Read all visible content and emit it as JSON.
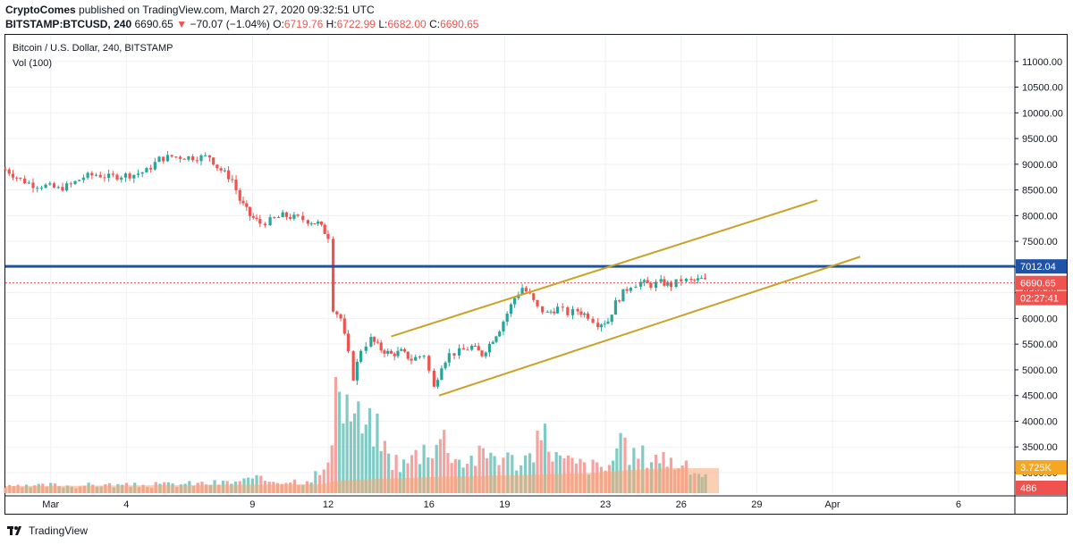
{
  "header": {
    "line1_author": "CryptoComes",
    "line1_rest": "published on TradingView.com, March 27, 2020 09:32:51 UTC",
    "symbol": "BITSTAMP:BTCUSD, 240",
    "last": "6690.65",
    "arrow": "▼",
    "change": "−70.07 (−1.04%)",
    "o_label": "O:",
    "o_val": "6719.76",
    "h_label": "H:",
    "h_val": "6722.99",
    "l_label": "L:",
    "l_val": "6682.00",
    "c_label": "C:",
    "c_val": "6690.65"
  },
  "legend": {
    "title": "Bitcoin / U.S. Dollar, 240, BITSTAMP",
    "volume": "Vol (100)"
  },
  "footer": {
    "brand": "TradingView"
  },
  "chart_data": {
    "type": "candlestick",
    "symbol": "BTCUSD",
    "exchange": "BITSTAMP",
    "interval_minutes": 240,
    "y_ticks": [
      3000,
      3500,
      4000,
      4500,
      5000,
      5500,
      6000,
      6500,
      7000,
      7500,
      8000,
      8500,
      9000,
      9500,
      10000,
      10500,
      11000
    ],
    "y_tick_labels": [
      "3000.00",
      "3500.00",
      "4000.00",
      "4500.00",
      "5000.00",
      "5500.00",
      "6000.00",
      "6500.00",
      "7000.00",
      "7500.00",
      "8000.00",
      "8500.00",
      "9000.00",
      "9500.00",
      "10000.00",
      "10500.00",
      "11000.00"
    ],
    "ylim": [
      2600,
      11500
    ],
    "x_ticks": [
      {
        "label": "Mar",
        "day": 1
      },
      {
        "label": "4",
        "day": 4
      },
      {
        "label": "9",
        "day": 9
      },
      {
        "label": "12",
        "day": 12
      },
      {
        "label": "16",
        "day": 16
      },
      {
        "label": "19",
        "day": 19
      },
      {
        "label": "23",
        "day": 23
      },
      {
        "label": "26",
        "day": 26
      },
      {
        "label": "29",
        "day": 29
      },
      {
        "label": "Apr",
        "day": 32
      },
      {
        "label": "6",
        "day": 37
      }
    ],
    "xlim_days": [
      -0.8,
      39.2
    ],
    "price_closes": [
      [
        -0.8,
        8900
      ],
      [
        -0.2,
        8700
      ],
      [
        0.3,
        8600
      ],
      [
        0.8,
        8580
      ],
      [
        1.3,
        8520
      ],
      [
        1.8,
        8600
      ],
      [
        2.3,
        8750
      ],
      [
        2.8,
        8800
      ],
      [
        3.3,
        8750
      ],
      [
        3.8,
        8780
      ],
      [
        4.3,
        8800
      ],
      [
        4.8,
        8870
      ],
      [
        5.3,
        9100
      ],
      [
        5.8,
        9150
      ],
      [
        6.3,
        9140
      ],
      [
        6.8,
        9130
      ],
      [
        7.3,
        9150
      ],
      [
        7.6,
        8950
      ],
      [
        8.2,
        8700
      ],
      [
        8.5,
        8300
      ],
      [
        8.9,
        8000
      ],
      [
        9.3,
        7850
      ],
      [
        9.7,
        7900
      ],
      [
        10.2,
        8000
      ],
      [
        10.8,
        7950
      ],
      [
        11.2,
        7900
      ],
      [
        11.6,
        7850
      ],
      [
        12.0,
        7600
      ],
      [
        12.2,
        6200
      ],
      [
        12.5,
        6000
      ],
      [
        12.8,
        5300
      ],
      [
        13.0,
        4850
      ],
      [
        13.3,
        5400
      ],
      [
        13.7,
        5600
      ],
      [
        14.1,
        5400
      ],
      [
        14.5,
        5300
      ],
      [
        14.9,
        5350
      ],
      [
        15.3,
        5200
      ],
      [
        15.8,
        5300
      ],
      [
        16.2,
        4650
      ],
      [
        16.5,
        5100
      ],
      [
        16.8,
        5300
      ],
      [
        17.2,
        5350
      ],
      [
        17.7,
        5450
      ],
      [
        18.1,
        5300
      ],
      [
        18.4,
        5500
      ],
      [
        18.8,
        5800
      ],
      [
        19.1,
        6100
      ],
      [
        19.4,
        6400
      ],
      [
        19.7,
        6600
      ],
      [
        20.0,
        6450
      ],
      [
        20.3,
        6200
      ],
      [
        20.7,
        6100
      ],
      [
        21.1,
        6200
      ],
      [
        21.5,
        6100
      ],
      [
        21.9,
        6150
      ],
      [
        22.3,
        6050
      ],
      [
        22.7,
        5900
      ],
      [
        23.1,
        5950
      ],
      [
        23.4,
        6300
      ],
      [
        23.7,
        6500
      ],
      [
        24.0,
        6650
      ],
      [
        24.4,
        6700
      ],
      [
        24.8,
        6650
      ],
      [
        25.2,
        6700
      ],
      [
        25.6,
        6650
      ],
      [
        26.0,
        6750
      ],
      [
        26.4,
        6720
      ],
      [
        26.8,
        6760
      ],
      [
        27.1,
        6690
      ]
    ],
    "horizontal_lines": [
      {
        "value": 7012.04,
        "label": "7012.04",
        "color": "#1e53a8"
      },
      {
        "value": 6690.65,
        "label": "6690.65",
        "color": "#ef5350",
        "dashed": true
      }
    ],
    "countdown_label": "02:27:41",
    "channel": {
      "color": "#c9a227",
      "upper": {
        "start": [
          14.5,
          5650
        ],
        "end": [
          31.4,
          8300
        ]
      },
      "lower": {
        "start": [
          16.4,
          4500
        ],
        "end": [
          33.1,
          7200
        ]
      }
    },
    "volume_labels": [
      {
        "label": "3.725K",
        "color": "#f5a623"
      },
      {
        "label": "486",
        "color": "#ef5350"
      }
    ],
    "volume_values": [
      [
        -0.8,
        150
      ],
      [
        0.2,
        160
      ],
      [
        1.0,
        200
      ],
      [
        2.0,
        180
      ],
      [
        3.0,
        210
      ],
      [
        4.0,
        190
      ],
      [
        5.0,
        200
      ],
      [
        6.0,
        220
      ],
      [
        7.0,
        240
      ],
      [
        8.0,
        260
      ],
      [
        9.0,
        330
      ],
      [
        10.0,
        320
      ],
      [
        11.0,
        300
      ],
      [
        12.0,
        600
      ],
      [
        12.3,
        2400
      ],
      [
        12.6,
        2300
      ],
      [
        12.9,
        2050
      ],
      [
        13.2,
        1800
      ],
      [
        13.5,
        1500
      ],
      [
        13.8,
        1700
      ],
      [
        14.4,
        900
      ],
      [
        15.0,
        700
      ],
      [
        15.8,
        1100
      ],
      [
        16.3,
        1300
      ],
      [
        16.6,
        1350
      ],
      [
        17.2,
        800
      ],
      [
        18.0,
        900
      ],
      [
        18.6,
        1000
      ],
      [
        19.3,
        800
      ],
      [
        20.0,
        900
      ],
      [
        20.6,
        1400
      ],
      [
        21.2,
        800
      ],
      [
        22.0,
        700
      ],
      [
        23.0,
        600
      ],
      [
        23.6,
        1100
      ],
      [
        24.3,
        900
      ],
      [
        25.0,
        950
      ],
      [
        25.6,
        800
      ],
      [
        26.2,
        600
      ],
      [
        26.7,
        500
      ],
      [
        27.1,
        486
      ]
    ],
    "volume_ma": 3725,
    "colors": {
      "up": "#26a69a",
      "down": "#ef5350",
      "volume_up": "#80cbc4",
      "volume_down": "#f4a3a1",
      "volume_ma_fill": "#f5a877"
    }
  }
}
